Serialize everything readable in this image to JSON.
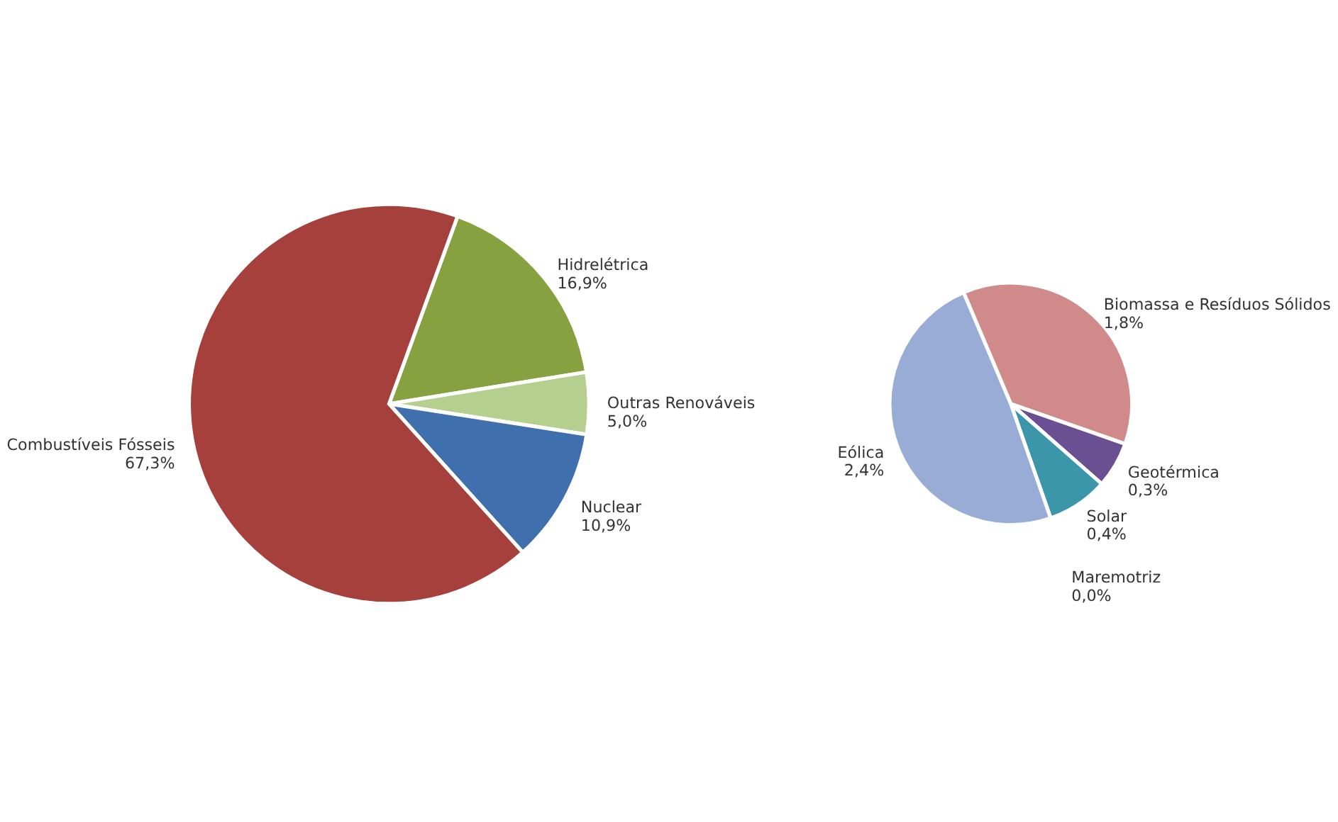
{
  "chart_data": [
    {
      "type": "pie",
      "categories": [
        "Hidrelétrica",
        "Outras Renováveis",
        "Nuclear",
        "Combustíveis Fósseis"
      ],
      "values": [
        16.9,
        5.0,
        10.9,
        67.3
      ],
      "colors": [
        "#87a040",
        "#b5cf8f",
        "#3f6fad",
        "#a5403c"
      ],
      "value_labels": [
        "16,9%",
        "5,0%",
        "10,9%",
        "67,3%"
      ]
    },
    {
      "type": "pie",
      "categories": [
        "Biomassa e Resíduos Sólidos",
        "Geotérmica",
        "Solar",
        "Maremotriz",
        "Eólica"
      ],
      "values": [
        1.8,
        0.3,
        0.4,
        0.0,
        2.4
      ],
      "colors": [
        "#d08a8a",
        "#6a4f93",
        "#3a96a8",
        "#2e7f8f",
        "#98acd6"
      ],
      "value_labels": [
        "1,8%",
        "0,3%",
        "0,4%",
        "0,0%",
        "2,4%"
      ]
    }
  ]
}
